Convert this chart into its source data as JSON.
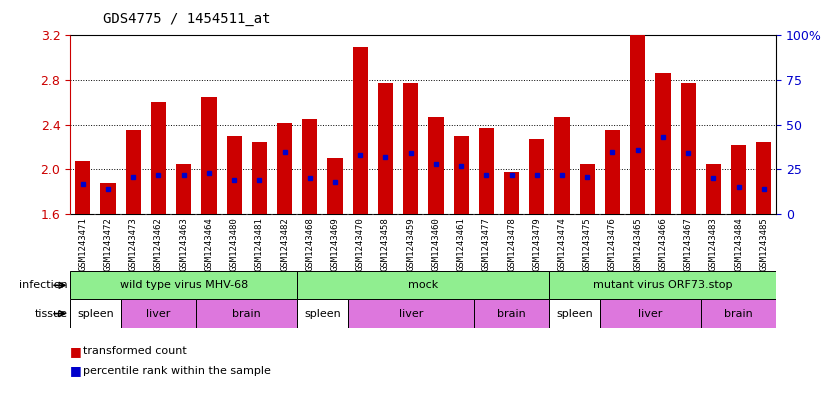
{
  "title": "GDS4775 / 1454511_at",
  "samples": [
    "GSM1243471",
    "GSM1243472",
    "GSM1243473",
    "GSM1243462",
    "GSM1243463",
    "GSM1243464",
    "GSM1243480",
    "GSM1243481",
    "GSM1243482",
    "GSM1243468",
    "GSM1243469",
    "GSM1243470",
    "GSM1243458",
    "GSM1243459",
    "GSM1243460",
    "GSM1243461",
    "GSM1243477",
    "GSM1243478",
    "GSM1243479",
    "GSM1243474",
    "GSM1243475",
    "GSM1243476",
    "GSM1243465",
    "GSM1243466",
    "GSM1243467",
    "GSM1243483",
    "GSM1243484",
    "GSM1243485"
  ],
  "transformed_count": [
    2.08,
    1.88,
    2.35,
    2.6,
    2.05,
    2.65,
    2.3,
    2.25,
    2.42,
    2.45,
    2.1,
    3.1,
    2.77,
    2.77,
    2.47,
    2.3,
    2.37,
    1.98,
    2.27,
    2.47,
    2.05,
    2.35,
    3.22,
    2.86,
    2.77,
    2.05,
    2.22,
    2.25
  ],
  "percentile_rank": [
    17,
    14,
    21,
    22,
    22,
    23,
    19,
    19,
    35,
    20,
    18,
    33,
    32,
    34,
    28,
    27,
    22,
    22,
    22,
    22,
    21,
    35,
    36,
    43,
    34,
    20,
    15,
    14
  ],
  "infection_groups": [
    {
      "label": "wild type virus MHV-68",
      "start": 0,
      "end": 9
    },
    {
      "label": "mock",
      "start": 9,
      "end": 19
    },
    {
      "label": "mutant virus ORF73.stop",
      "start": 19,
      "end": 28
    }
  ],
  "tissue_groups": [
    {
      "label": "spleen",
      "start": 0,
      "end": 2,
      "color": "#ffffff"
    },
    {
      "label": "liver",
      "start": 2,
      "end": 5,
      "color": "#dd77dd"
    },
    {
      "label": "brain",
      "start": 5,
      "end": 9,
      "color": "#dd77dd"
    },
    {
      "label": "spleen",
      "start": 9,
      "end": 11,
      "color": "#ffffff"
    },
    {
      "label": "liver",
      "start": 11,
      "end": 16,
      "color": "#dd77dd"
    },
    {
      "label": "brain",
      "start": 16,
      "end": 19,
      "color": "#dd77dd"
    },
    {
      "label": "spleen",
      "start": 19,
      "end": 21,
      "color": "#ffffff"
    },
    {
      "label": "liver",
      "start": 21,
      "end": 25,
      "color": "#dd77dd"
    },
    {
      "label": "brain",
      "start": 25,
      "end": 28,
      "color": "#dd77dd"
    }
  ],
  "infection_color": "#90ee90",
  "bar_color": "#cc0000",
  "percentile_color": "#0000cc",
  "xticklabel_bg": "#cccccc",
  "ylim_left": [
    1.6,
    3.2
  ],
  "ylim_right": [
    0,
    100
  ],
  "yticks_left": [
    1.6,
    2.0,
    2.4,
    2.8,
    3.2
  ],
  "yticks_right": [
    0,
    25,
    50,
    75,
    100
  ],
  "baseline": 1.6
}
